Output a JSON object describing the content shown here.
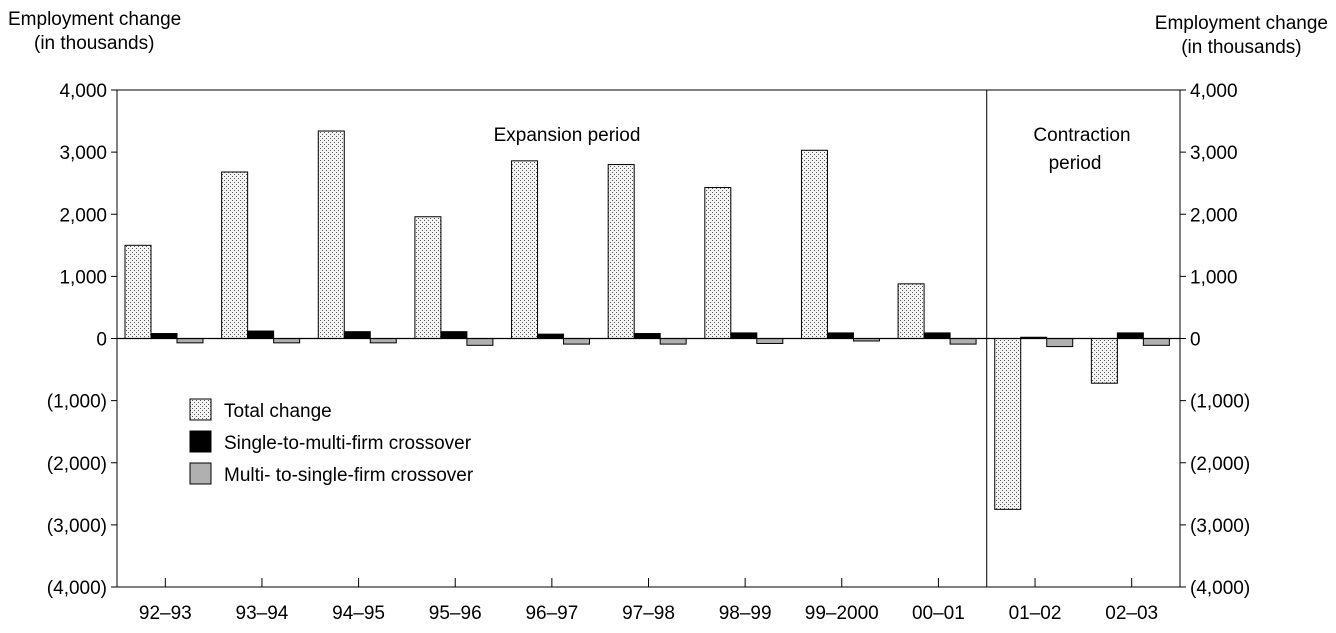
{
  "chart_data": {
    "type": "bar",
    "y_axis_label_line1": "Employment change",
    "y_axis_label_line2": "(in thousands)",
    "categories": [
      "92–93",
      "93–94",
      "94–95",
      "95–96",
      "96–97",
      "97–98",
      "98–99",
      "99–2000",
      "00–01",
      "01–02",
      "02–03"
    ],
    "series": [
      {
        "name": "Total change",
        "values": [
          1500,
          2680,
          3340,
          1960,
          2860,
          2800,
          2430,
          3030,
          880,
          -2750,
          -720
        ]
      },
      {
        "name": "Single-to-multi-firm crossover",
        "values": [
          80,
          120,
          110,
          110,
          70,
          80,
          90,
          90,
          90,
          20,
          90
        ]
      },
      {
        "name": "Multi- to-single-firm crossover",
        "values": [
          -70,
          -70,
          -70,
          -110,
          -90,
          -90,
          -80,
          -40,
          -90,
          -130,
          -110
        ]
      }
    ],
    "ylim": [
      -4000,
      4000
    ],
    "yticks": [
      -4000,
      -3000,
      -2000,
      -1000,
      0,
      1000,
      2000,
      3000,
      4000
    ],
    "ytick_labels": [
      "(4,000)",
      "(3,000)",
      "(2,000)",
      "(1,000)",
      "0",
      "1,000",
      "2,000",
      "3,000",
      "4,000"
    ],
    "annotations": {
      "expansion": "Expansion period",
      "contraction_line1": "Contraction",
      "contraction_line2": "period"
    },
    "period_divider_after_category": 8,
    "legend_position": "left, middle-lower",
    "grid": false,
    "colors": {
      "total": "#f2f2f2",
      "single_to_multi": "#000000",
      "multi_to_single": "#b0b0b0"
    }
  }
}
